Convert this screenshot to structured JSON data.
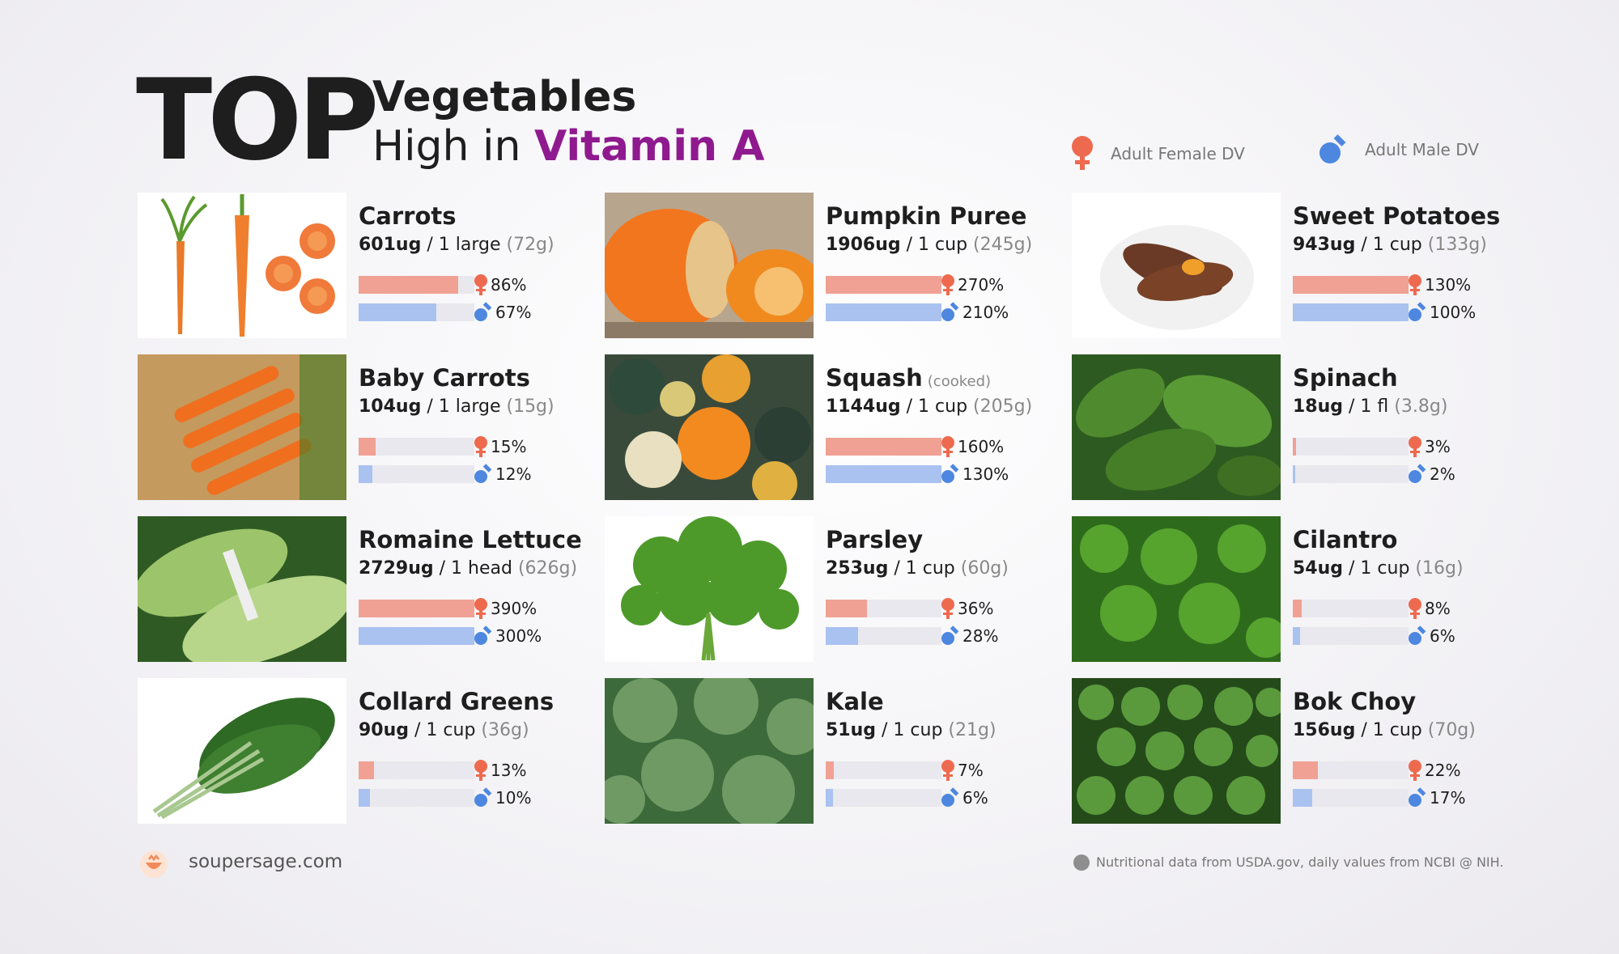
{
  "header": {
    "title_big": "TOP",
    "title_line1": "Vegetables",
    "title_line2_prefix": "High in ",
    "title_line2_highlight": "Vitamin A"
  },
  "legend": {
    "female_label": "Adult Female DV",
    "male_label": "Adult Male DV"
  },
  "colors": {
    "accent_purple": "#8f1a8f",
    "female": "#ee6a4f",
    "female_bar": "#f0a194",
    "male": "#4d87e0",
    "male_bar": "#a9c2f0"
  },
  "items": [
    {
      "name": "Carrots",
      "note": "",
      "amount": "601ug",
      "serving": " / 1 large ",
      "grams": "(72g)",
      "female_pct": "86%",
      "male_pct": "67%",
      "female_value": 86,
      "male_value": 67,
      "image": "carrots"
    },
    {
      "name": "Pumpkin Puree",
      "note": "",
      "amount": "1906ug",
      "serving": " / 1 cup ",
      "grams": "(245g)",
      "female_pct": "270%",
      "male_pct": "210%",
      "female_value": 270,
      "male_value": 210,
      "image": "pumpkin"
    },
    {
      "name": "Sweet Potatoes",
      "note": "",
      "amount": "943ug",
      "serving": " / 1 cup ",
      "grams": "(133g)",
      "female_pct": "130%",
      "male_pct": "100%",
      "female_value": 130,
      "male_value": 100,
      "image": "sweet-potato"
    },
    {
      "name": "Baby Carrots",
      "note": "",
      "amount": "104ug",
      "serving": " / 1 large ",
      "grams": "(15g)",
      "female_pct": "15%",
      "male_pct": "12%",
      "female_value": 15,
      "male_value": 12,
      "image": "baby-carrots"
    },
    {
      "name": "Squash",
      "note": "(cooked)",
      "amount": "1144ug",
      "serving": " / 1 cup ",
      "grams": "(205g)",
      "female_pct": "160%",
      "male_pct": "130%",
      "female_value": 160,
      "male_value": 130,
      "image": "squash"
    },
    {
      "name": "Spinach",
      "note": "",
      "amount": "18ug",
      "serving": " / 1 fl ",
      "grams": "(3.8g)",
      "female_pct": "3%",
      "male_pct": "2%",
      "female_value": 3,
      "male_value": 2,
      "image": "spinach"
    },
    {
      "name": "Romaine Lettuce",
      "note": "",
      "amount": "2729ug",
      "serving": " / 1 head ",
      "grams": "(626g)",
      "female_pct": "390%",
      "male_pct": "300%",
      "female_value": 390,
      "male_value": 300,
      "image": "romaine"
    },
    {
      "name": "Parsley",
      "note": "",
      "amount": "253ug",
      "serving": " / 1 cup ",
      "grams": "(60g)",
      "female_pct": "36%",
      "male_pct": "28%",
      "female_value": 36,
      "male_value": 28,
      "image": "parsley"
    },
    {
      "name": "Cilantro",
      "note": "",
      "amount": "54ug",
      "serving": " / 1 cup ",
      "grams": "(16g)",
      "female_pct": "8%",
      "male_pct": "6%",
      "female_value": 8,
      "male_value": 6,
      "image": "cilantro"
    },
    {
      "name": "Collard Greens",
      "note": "",
      "amount": "90ug",
      "serving": " / 1 cup ",
      "grams": "(36g)",
      "female_pct": "13%",
      "male_pct": "10%",
      "female_value": 13,
      "male_value": 10,
      "image": "collard"
    },
    {
      "name": "Kale",
      "note": "",
      "amount": "51ug",
      "serving": " / 1 cup ",
      "grams": "(21g)",
      "female_pct": "7%",
      "male_pct": "6%",
      "female_value": 7,
      "male_value": 6,
      "image": "kale"
    },
    {
      "name": "Bok Choy",
      "note": "",
      "amount": "156ug",
      "serving": " / 1 cup ",
      "grams": "(70g)",
      "female_pct": "22%",
      "male_pct": "17%",
      "female_value": 22,
      "male_value": 17,
      "image": "bok-choy"
    }
  ],
  "footer": {
    "site": "soupersage.com",
    "source": "Nutritional data from USDA.gov, daily values from NCBI @ NIH."
  }
}
